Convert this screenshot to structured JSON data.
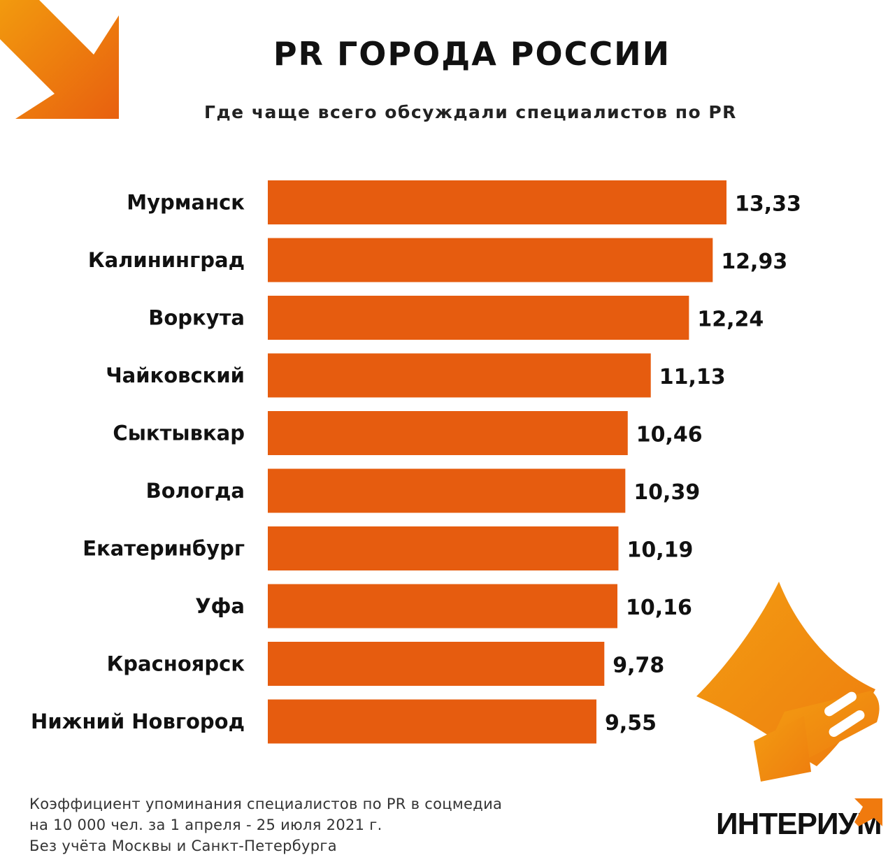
{
  "header": {
    "title": "PR ГОРОДА РОССИИ",
    "subtitle": "Где чаще всего обсуждали специалистов по PR"
  },
  "colors": {
    "bar": "#E65C0F",
    "accent_dark": "#E8600F",
    "accent_light": "#F29A0E",
    "text": "#111111"
  },
  "chart_data": {
    "type": "bar",
    "orientation": "horizontal",
    "categories": [
      "Мурманск",
      "Калининград",
      "Воркута",
      "Чайковский",
      "Сыктывкар",
      "Вологда",
      "Екатеринбург",
      "Уфа",
      "Красноярск",
      "Нижний Новгород"
    ],
    "values": [
      13.33,
      12.93,
      12.24,
      11.13,
      10.46,
      10.39,
      10.19,
      10.16,
      9.78,
      9.55
    ],
    "value_labels": [
      "13,33",
      "12,93",
      "12,24",
      "11,13",
      "10,46",
      "10,39",
      "10,19",
      "10,16",
      "9,78",
      "9,55"
    ],
    "title": "PR ГОРОДА РОССИИ",
    "subtitle": "Где чаще всего обсуждали специалистов по PR",
    "xlabel": "",
    "ylabel": "",
    "grid": false,
    "legend": "none"
  },
  "footnote": {
    "lines": [
      "Коэффициент упоминания специалистов по PR в соцмедиа",
      "на 10 000 чел. за 1 апреля - 25 июля 2021 г.",
      "Без учёта Москвы и Санкт-Петербурга"
    ]
  },
  "logo": {
    "text": "ИНТЕРИУМ",
    "icon": "arrow-up-right-icon"
  },
  "decorations": {
    "corner_icon": "arrow-down-right-icon",
    "illustration_icon": "megaphone-icon"
  }
}
